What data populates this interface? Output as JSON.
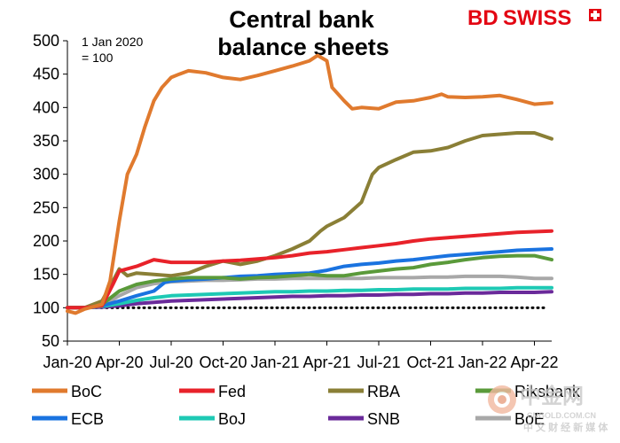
{
  "brand": {
    "logo_bd": "BD",
    "logo_swiss": "SWISS",
    "colors": {
      "bd": "#e30613",
      "swiss": "#e30613"
    }
  },
  "watermark": {
    "site": "中金网",
    "url": "CNGOLD.COM.CN",
    "tagline": "中 文 财 经 新 媒 体",
    "color": "#c9c9c9"
  },
  "chart_data": {
    "type": "line",
    "title_lines": [
      "Central bank",
      "balance sheets"
    ],
    "annotation_lines": [
      "1 Jan 2020",
      "= 100"
    ],
    "xlabel": "",
    "ylabel": "",
    "ylim": [
      50,
      500
    ],
    "yticks": [
      50,
      100,
      150,
      200,
      250,
      300,
      350,
      400,
      450,
      500
    ],
    "xlim": [
      "2020-01",
      "2022-05"
    ],
    "xticks": [
      {
        "label": "Jan-20",
        "at": "2020-01"
      },
      {
        "label": "Apr-20",
        "at": "2020-04"
      },
      {
        "label": "Jul-20",
        "at": "2020-07"
      },
      {
        "label": "Oct-20",
        "at": "2020-10"
      },
      {
        "label": "Jan-21",
        "at": "2021-01"
      },
      {
        "label": "Apr-21",
        "at": "2021-04"
      },
      {
        "label": "Jul-21",
        "at": "2021-07"
      },
      {
        "label": "Oct-21",
        "at": "2021-10"
      },
      {
        "label": "Jan-22",
        "at": "2022-01"
      },
      {
        "label": "Apr-22",
        "at": "2022-04"
      }
    ],
    "grid": false,
    "legend_position": "bottom",
    "reference_line": {
      "y": 100,
      "style": "dotted",
      "color": "#000000"
    },
    "series": [
      {
        "name": "BoC",
        "color": "#e07a2e",
        "points": [
          [
            "2020-01",
            95
          ],
          [
            "2020-01-15",
            92
          ],
          [
            "2020-02",
            98
          ],
          [
            "2020-03",
            105
          ],
          [
            "2020-03-15",
            140
          ],
          [
            "2020-04",
            230
          ],
          [
            "2020-04-15",
            300
          ],
          [
            "2020-05",
            330
          ],
          [
            "2020-05-15",
            370
          ],
          [
            "2020-06",
            410
          ],
          [
            "2020-06-15",
            430
          ],
          [
            "2020-07",
            445
          ],
          [
            "2020-07-15",
            450
          ],
          [
            "2020-08",
            455
          ],
          [
            "2020-09",
            452
          ],
          [
            "2020-10",
            445
          ],
          [
            "2020-11",
            442
          ],
          [
            "2020-12",
            448
          ],
          [
            "2021-01",
            455
          ],
          [
            "2021-02",
            462
          ],
          [
            "2021-03",
            470
          ],
          [
            "2021-03-15",
            478
          ],
          [
            "2021-04",
            470
          ],
          [
            "2021-04-10",
            430
          ],
          [
            "2021-05",
            410
          ],
          [
            "2021-05-15",
            398
          ],
          [
            "2021-06",
            400
          ],
          [
            "2021-07",
            398
          ],
          [
            "2021-08",
            408
          ],
          [
            "2021-09",
            410
          ],
          [
            "2021-10",
            415
          ],
          [
            "2021-10-20",
            420
          ],
          [
            "2021-11",
            416
          ],
          [
            "2021-12",
            415
          ],
          [
            "2022-01",
            416
          ],
          [
            "2022-02",
            418
          ],
          [
            "2022-03",
            412
          ],
          [
            "2022-04",
            405
          ],
          [
            "2022-05",
            407
          ]
        ]
      },
      {
        "name": "Fed",
        "color": "#e8222a",
        "points": [
          [
            "2020-01",
            100
          ],
          [
            "2020-02",
            100
          ],
          [
            "2020-03",
            103
          ],
          [
            "2020-03-20",
            135
          ],
          [
            "2020-04",
            155
          ],
          [
            "2020-05",
            162
          ],
          [
            "2020-06",
            172
          ],
          [
            "2020-07",
            168
          ],
          [
            "2020-08",
            168
          ],
          [
            "2020-09",
            168
          ],
          [
            "2020-10",
            170
          ],
          [
            "2020-11",
            171
          ],
          [
            "2020-12",
            173
          ],
          [
            "2021-01",
            175
          ],
          [
            "2021-02",
            178
          ],
          [
            "2021-03",
            182
          ],
          [
            "2021-04",
            184
          ],
          [
            "2021-05",
            187
          ],
          [
            "2021-06",
            190
          ],
          [
            "2021-07",
            193
          ],
          [
            "2021-08",
            196
          ],
          [
            "2021-09",
            200
          ],
          [
            "2021-10",
            203
          ],
          [
            "2021-11",
            205
          ],
          [
            "2021-12",
            207
          ],
          [
            "2022-01",
            209
          ],
          [
            "2022-02",
            211
          ],
          [
            "2022-03",
            213
          ],
          [
            "2022-04",
            214
          ],
          [
            "2022-05",
            215
          ]
        ]
      },
      {
        "name": "RBA",
        "color": "#8a7f36",
        "points": [
          [
            "2020-01",
            100
          ],
          [
            "2020-02",
            100
          ],
          [
            "2020-03",
            110
          ],
          [
            "2020-03-20",
            140
          ],
          [
            "2020-04",
            158
          ],
          [
            "2020-04-15",
            148
          ],
          [
            "2020-05",
            152
          ],
          [
            "2020-06",
            150
          ],
          [
            "2020-07",
            148
          ],
          [
            "2020-08",
            152
          ],
          [
            "2020-09",
            162
          ],
          [
            "2020-10",
            170
          ],
          [
            "2020-11",
            165
          ],
          [
            "2020-12",
            170
          ],
          [
            "2021-01",
            178
          ],
          [
            "2021-02",
            188
          ],
          [
            "2021-03",
            200
          ],
          [
            "2021-03-20",
            215
          ],
          [
            "2021-04",
            222
          ],
          [
            "2021-05",
            235
          ],
          [
            "2021-06",
            258
          ],
          [
            "2021-06-20",
            300
          ],
          [
            "2021-07",
            310
          ],
          [
            "2021-08",
            322
          ],
          [
            "2021-09",
            333
          ],
          [
            "2021-10",
            335
          ],
          [
            "2021-11",
            340
          ],
          [
            "2021-12",
            350
          ],
          [
            "2022-01",
            358
          ],
          [
            "2022-02",
            360
          ],
          [
            "2022-03",
            362
          ],
          [
            "2022-04",
            362
          ],
          [
            "2022-05",
            353
          ]
        ]
      },
      {
        "name": "Riksbank",
        "color": "#5a9a3a",
        "points": [
          [
            "2020-01",
            100
          ],
          [
            "2020-02",
            100
          ],
          [
            "2020-03",
            105
          ],
          [
            "2020-04",
            125
          ],
          [
            "2020-05",
            135
          ],
          [
            "2020-06",
            140
          ],
          [
            "2020-07",
            143
          ],
          [
            "2020-08",
            145
          ],
          [
            "2020-09",
            145
          ],
          [
            "2020-10",
            145
          ],
          [
            "2020-11",
            143
          ],
          [
            "2020-12",
            145
          ],
          [
            "2021-01",
            146
          ],
          [
            "2021-02",
            148
          ],
          [
            "2021-03",
            150
          ],
          [
            "2021-04",
            148
          ],
          [
            "2021-05",
            148
          ],
          [
            "2021-06",
            152
          ],
          [
            "2021-07",
            155
          ],
          [
            "2021-08",
            158
          ],
          [
            "2021-09",
            160
          ],
          [
            "2021-10",
            165
          ],
          [
            "2021-11",
            168
          ],
          [
            "2021-12",
            172
          ],
          [
            "2022-01",
            175
          ],
          [
            "2022-02",
            177
          ],
          [
            "2022-03",
            178
          ],
          [
            "2022-04",
            178
          ],
          [
            "2022-05",
            172
          ]
        ]
      },
      {
        "name": "ECB",
        "color": "#1a73e0",
        "points": [
          [
            "2020-01",
            100
          ],
          [
            "2020-02",
            100
          ],
          [
            "2020-03",
            103
          ],
          [
            "2020-04",
            110
          ],
          [
            "2020-05",
            118
          ],
          [
            "2020-06",
            125
          ],
          [
            "2020-06-20",
            138
          ],
          [
            "2020-07",
            140
          ],
          [
            "2020-08",
            142
          ],
          [
            "2020-09",
            143
          ],
          [
            "2020-10",
            145
          ],
          [
            "2020-11",
            147
          ],
          [
            "2020-12",
            148
          ],
          [
            "2021-01",
            150
          ],
          [
            "2021-02",
            151
          ],
          [
            "2021-03",
            152
          ],
          [
            "2021-04",
            156
          ],
          [
            "2021-05",
            162
          ],
          [
            "2021-06",
            165
          ],
          [
            "2021-07",
            167
          ],
          [
            "2021-08",
            170
          ],
          [
            "2021-09",
            172
          ],
          [
            "2021-10",
            175
          ],
          [
            "2021-11",
            178
          ],
          [
            "2021-12",
            180
          ],
          [
            "2022-01",
            182
          ],
          [
            "2022-02",
            184
          ],
          [
            "2022-03",
            186
          ],
          [
            "2022-04",
            187
          ],
          [
            "2022-05",
            188
          ]
        ]
      },
      {
        "name": "BoJ",
        "color": "#1ec9b4",
        "points": [
          [
            "2020-01",
            100
          ],
          [
            "2020-02",
            100
          ],
          [
            "2020-03",
            102
          ],
          [
            "2020-04",
            106
          ],
          [
            "2020-05",
            111
          ],
          [
            "2020-06",
            115
          ],
          [
            "2020-07",
            118
          ],
          [
            "2020-08",
            119
          ],
          [
            "2020-09",
            120
          ],
          [
            "2020-10",
            121
          ],
          [
            "2020-11",
            122
          ],
          [
            "2020-12",
            123
          ],
          [
            "2021-01",
            124
          ],
          [
            "2021-02",
            124
          ],
          [
            "2021-03",
            125
          ],
          [
            "2021-04",
            125
          ],
          [
            "2021-05",
            126
          ],
          [
            "2021-06",
            126
          ],
          [
            "2021-07",
            127
          ],
          [
            "2021-08",
            127
          ],
          [
            "2021-09",
            128
          ],
          [
            "2021-10",
            128
          ],
          [
            "2021-11",
            128
          ],
          [
            "2021-12",
            129
          ],
          [
            "2022-01",
            129
          ],
          [
            "2022-02",
            129
          ],
          [
            "2022-03",
            130
          ],
          [
            "2022-04",
            130
          ],
          [
            "2022-05",
            130
          ]
        ]
      },
      {
        "name": "SNB",
        "color": "#6a2a9a",
        "points": [
          [
            "2020-01",
            100
          ],
          [
            "2020-02",
            100
          ],
          [
            "2020-03",
            101
          ],
          [
            "2020-04",
            103
          ],
          [
            "2020-05",
            106
          ],
          [
            "2020-06",
            108
          ],
          [
            "2020-07",
            110
          ],
          [
            "2020-08",
            111
          ],
          [
            "2020-09",
            112
          ],
          [
            "2020-10",
            113
          ],
          [
            "2020-11",
            114
          ],
          [
            "2020-12",
            115
          ],
          [
            "2021-01",
            116
          ],
          [
            "2021-02",
            117
          ],
          [
            "2021-03",
            117
          ],
          [
            "2021-04",
            118
          ],
          [
            "2021-05",
            118
          ],
          [
            "2021-06",
            119
          ],
          [
            "2021-07",
            119
          ],
          [
            "2021-08",
            120
          ],
          [
            "2021-09",
            120
          ],
          [
            "2021-10",
            121
          ],
          [
            "2021-11",
            121
          ],
          [
            "2021-12",
            122
          ],
          [
            "2022-01",
            122
          ],
          [
            "2022-02",
            123
          ],
          [
            "2022-03",
            123
          ],
          [
            "2022-04",
            123
          ],
          [
            "2022-05",
            124
          ]
        ]
      },
      {
        "name": "BoE",
        "color": "#a8a8a8",
        "points": [
          [
            "2020-01",
            100
          ],
          [
            "2020-02",
            100
          ],
          [
            "2020-03",
            103
          ],
          [
            "2020-04",
            118
          ],
          [
            "2020-05",
            130
          ],
          [
            "2020-06",
            136
          ],
          [
            "2020-07",
            139
          ],
          [
            "2020-08",
            140
          ],
          [
            "2020-09",
            141
          ],
          [
            "2020-10",
            141
          ],
          [
            "2020-11",
            142
          ],
          [
            "2020-12",
            143
          ],
          [
            "2021-01",
            143
          ],
          [
            "2021-02",
            144
          ],
          [
            "2021-03",
            144
          ],
          [
            "2021-04",
            144
          ],
          [
            "2021-05",
            144
          ],
          [
            "2021-06",
            144
          ],
          [
            "2021-07",
            145
          ],
          [
            "2021-08",
            145
          ],
          [
            "2021-09",
            145
          ],
          [
            "2021-10",
            146
          ],
          [
            "2021-11",
            146
          ],
          [
            "2021-12",
            147
          ],
          [
            "2022-01",
            147
          ],
          [
            "2022-02",
            147
          ],
          [
            "2022-03",
            146
          ],
          [
            "2022-04",
            144
          ],
          [
            "2022-05",
            144
          ]
        ]
      }
    ],
    "legend": [
      {
        "name": "BoC",
        "color": "#e07a2e"
      },
      {
        "name": "Fed",
        "color": "#e8222a"
      },
      {
        "name": "RBA",
        "color": "#8a7f36"
      },
      {
        "name": "Riksbank",
        "color": "#5a9a3a"
      },
      {
        "name": "ECB",
        "color": "#1a73e0"
      },
      {
        "name": "BoJ",
        "color": "#1ec9b4"
      },
      {
        "name": "SNB",
        "color": "#6a2a9a"
      },
      {
        "name": "BoE",
        "color": "#a8a8a8"
      }
    ]
  }
}
